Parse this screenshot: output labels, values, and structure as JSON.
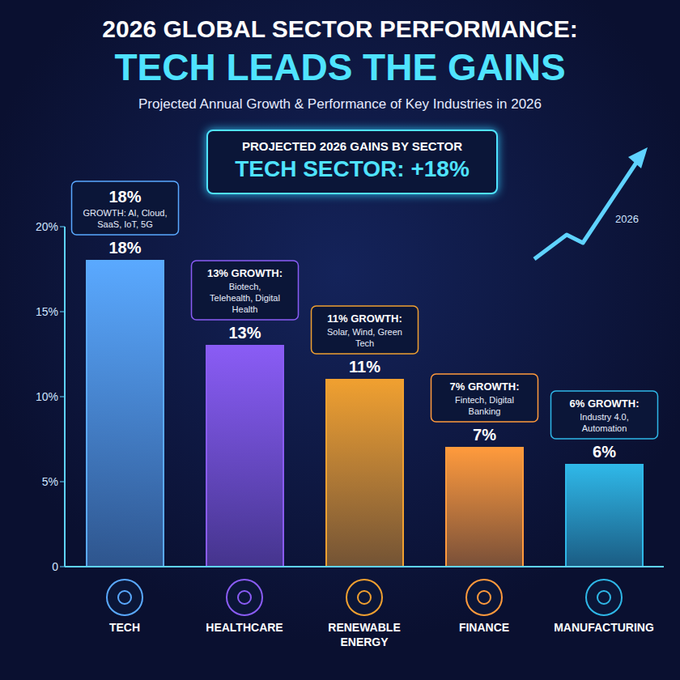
{
  "chart_data": {
    "type": "bar",
    "title": "2026 GLOBAL SECTOR PERFORMANCE:",
    "headline": "TECH LEADS THE GAINS",
    "subtitle": "Projected Annual Growth & Performance of Key Industries in 2026",
    "callout": {
      "heading": "PROJECTED 2026 GAINS BY SECTOR",
      "text": "TECH SECTOR: +18%"
    },
    "arrow_label": "2026",
    "categories": [
      "TECH",
      "HEALTHCARE",
      "RENEWABLE ENERGY",
      "FINANCE",
      "MANUFACTURING"
    ],
    "values": [
      18,
      13,
      11,
      7,
      6
    ],
    "value_labels": [
      "18%",
      "13%",
      "11%",
      "7%",
      "6%"
    ],
    "annotations": [
      {
        "heading": "18%",
        "text": "GROWTH: AI, Cloud, SaaS, IoT, 5G"
      },
      {
        "heading": "13% GROWTH:",
        "text": "Biotech, Telehealth, Digital Health"
      },
      {
        "heading": "11% GROWTH:",
        "text": "Solar, Wind, Green Tech"
      },
      {
        "heading": "7% GROWTH:",
        "text": "Fintech, Digital Banking"
      },
      {
        "heading": "6% GROWTH:",
        "text": "Industry 4.0, Automation"
      }
    ],
    "colors": [
      "#5aa9ff",
      "#8a5cf5",
      "#f0a030",
      "#ff9a3c",
      "#2fb8e8"
    ],
    "ylim": [
      0,
      20
    ],
    "yticks": [
      0,
      {
        "value": 5,
        "label": "5%"
      },
      {
        "value": 10,
        "label": "10%"
      },
      {
        "value": 15,
        "label": "15%"
      },
      {
        "value": 20,
        "label": "20%"
      }
    ],
    "data_labels": true,
    "grid": false
  }
}
